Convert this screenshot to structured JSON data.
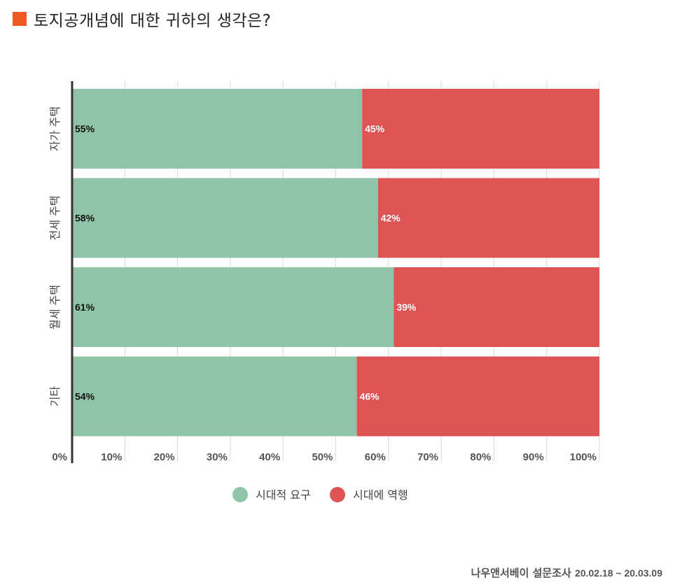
{
  "title": "토지공개념에 대한 귀하의 생각은?",
  "title_marker_color": "#ee5a24",
  "source": {
    "label": "나우앤서베이 설문조사",
    "dates": "20.02.18 ~ 20.03.09"
  },
  "chart_data": {
    "type": "bar",
    "orientation": "horizontal",
    "stacked": true,
    "categories": [
      "자가 주택",
      "전세 주택",
      "월세 주택",
      "기타"
    ],
    "series": [
      {
        "name": "시대적 요구",
        "values": [
          55,
          58,
          61,
          54
        ],
        "labels": [
          "55%",
          "58%",
          "61%",
          "54%"
        ],
        "color": "#8fc4a8",
        "label_color": "#111111"
      },
      {
        "name": "시대에 역행",
        "values": [
          45,
          42,
          39,
          46
        ],
        "labels": [
          "45%",
          "42%",
          "39%",
          "46%"
        ],
        "color": "#de5455",
        "label_color": "#ffffff"
      }
    ],
    "xlim": [
      0,
      100
    ],
    "x_ticks": [
      "0%",
      "10%",
      "20%",
      "30%",
      "40%",
      "50%",
      "60%",
      "70%",
      "80%",
      "90%",
      "100%"
    ],
    "grid": true,
    "legend": "bottom"
  }
}
